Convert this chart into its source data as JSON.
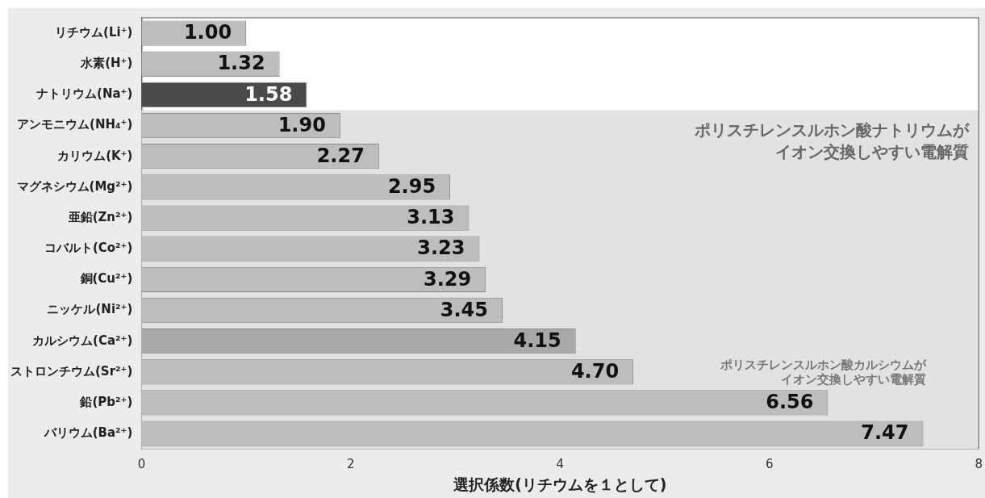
{
  "chart_data": {
    "type": "bar",
    "orientation": "horizontal",
    "categories": [
      "リチウム(Li⁺)",
      "水素(H⁺)",
      "ナトリウム(Na⁺)",
      "アンモニウム(NH₄⁺)",
      "カリウム(K⁺)",
      "マグネシウム(Mg²⁺)",
      "亜鉛(Zn²⁺)",
      "コバルト(Co²⁺)",
      "銅(Cu²⁺)",
      "ニッケル(Ni²⁺)",
      "カルシウム(Ca²⁺)",
      "ストロンチウム(Sr²⁺)",
      "鉛(Pb²⁺)",
      "バリウム(Ba²⁺)"
    ],
    "values": [
      1.0,
      1.32,
      1.58,
      1.9,
      2.27,
      2.95,
      3.13,
      3.23,
      3.29,
      3.45,
      4.15,
      4.7,
      6.56,
      7.47
    ],
    "colors": [
      "#bdbdbd",
      "#bdbdbd",
      "#4a4a4a",
      "#bdbdbd",
      "#bdbdbd",
      "#bdbdbd",
      "#bdbdbd",
      "#bdbdbd",
      "#bdbdbd",
      "#bdbdbd",
      "#a8a8a8",
      "#bdbdbd",
      "#bdbdbd",
      "#bdbdbd"
    ],
    "value_labels": [
      "1.00",
      "1.32",
      "1.58",
      "1.90",
      "2.27",
      "2.95",
      "3.13",
      "3.23",
      "3.29",
      "3.45",
      "4.15",
      "4.70",
      "6.56",
      "7.47"
    ],
    "xlabel": "選択係数(リチウムを１として)",
    "xlim": [
      0,
      8
    ],
    "xticks": [
      0,
      2,
      4,
      6,
      8
    ],
    "grid": false,
    "legend": false,
    "bands": [
      {
        "axis": "y",
        "from": "アンモニウム(NH₄⁺)",
        "to": "バリウム(Ba²⁺)",
        "label": "ポリスチレンスルホン酸ナトリウムがイオン交換しやすい電解質",
        "color": "#e2e2e2"
      }
    ],
    "annotations": [
      "ポリスチレンスルホン酸カルシウムがイオン交換しやすい電解質"
    ]
  }
}
